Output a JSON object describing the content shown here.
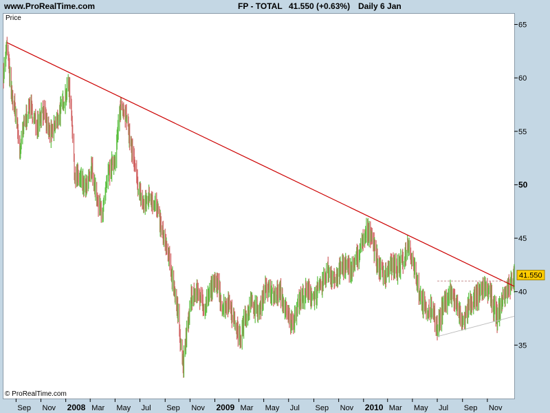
{
  "header": {
    "site": "www.ProRealTime.com",
    "title": "FP - TOTAL",
    "price_text": "41.550 (+0.63%)",
    "period": "Daily  6 Jan"
  },
  "panel": {
    "price_label": "Price",
    "copyright": "© ProRealTime.com"
  },
  "colors": {
    "background": "#c4d7e4",
    "up": "#5bbf40",
    "down": "#d06060",
    "trendline": "#cc0000",
    "support": "#bbbbbb",
    "resistance": "#c89090",
    "last_price_box": "#ffcc00"
  },
  "chart_data": {
    "type": "bar",
    "instrument": "FP - TOTAL",
    "interval": "Daily",
    "last_price": 41.55,
    "last_price_label": "41.550",
    "change_pct": 0.63,
    "x_start": "2007-08-01",
    "x_end": "2011-01-06",
    "ylim": [
      30,
      66
    ],
    "y_ticks": [
      {
        "value": 35,
        "label": "35"
      },
      {
        "value": 40,
        "label": "40"
      },
      {
        "value": 45,
        "label": "45"
      },
      {
        "value": 50,
        "label": "50"
      },
      {
        "value": 55,
        "label": "55"
      },
      {
        "value": 60,
        "label": "60"
      },
      {
        "value": 65,
        "label": "65"
      }
    ],
    "x_ticks": [
      {
        "date": "2007-09-01",
        "label": "Sep",
        "bold": false
      },
      {
        "date": "2007-11-01",
        "label": "Nov",
        "bold": false
      },
      {
        "date": "2008-01-01",
        "label": "2008",
        "bold": true
      },
      {
        "date": "2008-03-01",
        "label": "Mar",
        "bold": false
      },
      {
        "date": "2008-05-01",
        "label": "May",
        "bold": false
      },
      {
        "date": "2008-07-01",
        "label": "Jul",
        "bold": false
      },
      {
        "date": "2008-09-01",
        "label": "Sep",
        "bold": false
      },
      {
        "date": "2008-11-01",
        "label": "Nov",
        "bold": false
      },
      {
        "date": "2009-01-01",
        "label": "2009",
        "bold": true
      },
      {
        "date": "2009-03-01",
        "label": "Mar",
        "bold": false
      },
      {
        "date": "2009-05-01",
        "label": "May",
        "bold": false
      },
      {
        "date": "2009-07-01",
        "label": "Jul",
        "bold": false
      },
      {
        "date": "2009-09-01",
        "label": "Sep",
        "bold": false
      },
      {
        "date": "2009-11-01",
        "label": "Nov",
        "bold": false
      },
      {
        "date": "2010-01-01",
        "label": "2010",
        "bold": true
      },
      {
        "date": "2010-03-01",
        "label": "Mar",
        "bold": false
      },
      {
        "date": "2010-05-01",
        "label": "May",
        "bold": false
      },
      {
        "date": "2010-07-01",
        "label": "Jul",
        "bold": false
      },
      {
        "date": "2010-09-01",
        "label": "Sep",
        "bold": false
      },
      {
        "date": "2010-11-01",
        "label": "Nov",
        "bold": false
      }
    ],
    "price_path": [
      [
        "2007-08-01",
        60.5
      ],
      [
        "2007-08-10",
        63.0
      ],
      [
        "2007-08-20",
        58.5
      ],
      [
        "2007-09-01",
        56.5
      ],
      [
        "2007-09-10",
        53.0
      ],
      [
        "2007-09-20",
        55.5
      ],
      [
        "2007-10-05",
        57.5
      ],
      [
        "2007-10-20",
        55.5
      ],
      [
        "2007-11-05",
        57.0
      ],
      [
        "2007-11-25",
        54.5
      ],
      [
        "2007-12-15",
        56.5
      ],
      [
        "2008-01-01",
        58.5
      ],
      [
        "2008-01-08",
        59.5
      ],
      [
        "2008-01-15",
        57.0
      ],
      [
        "2008-01-22",
        51.0
      ],
      [
        "2008-02-05",
        50.5
      ],
      [
        "2008-02-20",
        49.5
      ],
      [
        "2008-03-05",
        51.5
      ],
      [
        "2008-03-20",
        48.0
      ],
      [
        "2008-04-01",
        47.5
      ],
      [
        "2008-04-15",
        51.0
      ],
      [
        "2008-05-01",
        52.5
      ],
      [
        "2008-05-15",
        57.5
      ],
      [
        "2008-05-25",
        57.0
      ],
      [
        "2008-06-10",
        53.5
      ],
      [
        "2008-06-25",
        50.0
      ],
      [
        "2008-07-10",
        48.0
      ],
      [
        "2008-07-25",
        49.0
      ],
      [
        "2008-08-10",
        48.0
      ],
      [
        "2008-08-25",
        45.5
      ],
      [
        "2008-09-10",
        43.0
      ],
      [
        "2008-09-25",
        40.0
      ],
      [
        "2008-10-05",
        37.0
      ],
      [
        "2008-10-15",
        33.0
      ],
      [
        "2008-10-25",
        36.5
      ],
      [
        "2008-11-05",
        39.5
      ],
      [
        "2008-11-20",
        40.0
      ],
      [
        "2008-12-05",
        38.5
      ],
      [
        "2008-12-20",
        40.0
      ],
      [
        "2009-01-05",
        41.0
      ],
      [
        "2009-01-20",
        38.5
      ],
      [
        "2009-02-05",
        39.0
      ],
      [
        "2009-02-20",
        37.0
      ],
      [
        "2009-03-05",
        35.5
      ],
      [
        "2009-03-15",
        37.5
      ],
      [
        "2009-04-01",
        39.0
      ],
      [
        "2009-04-20",
        38.0
      ],
      [
        "2009-05-05",
        40.5
      ],
      [
        "2009-05-25",
        39.5
      ],
      [
        "2009-06-10",
        40.0
      ],
      [
        "2009-06-25",
        38.0
      ],
      [
        "2009-07-10",
        37.0
      ],
      [
        "2009-07-25",
        39.0
      ],
      [
        "2009-08-15",
        40.0
      ],
      [
        "2009-09-01",
        39.5
      ],
      [
        "2009-09-20",
        40.5
      ],
      [
        "2009-10-05",
        42.0
      ],
      [
        "2009-10-25",
        41.0
      ],
      [
        "2009-11-10",
        42.5
      ],
      [
        "2009-12-01",
        42.0
      ],
      [
        "2009-12-20",
        43.5
      ],
      [
        "2010-01-08",
        45.5
      ],
      [
        "2010-01-20",
        45.5
      ],
      [
        "2010-02-05",
        42.5
      ],
      [
        "2010-02-20",
        41.5
      ],
      [
        "2010-03-10",
        42.5
      ],
      [
        "2010-03-25",
        42.0
      ],
      [
        "2010-04-10",
        43.0
      ],
      [
        "2010-04-20",
        44.5
      ],
      [
        "2010-05-05",
        42.5
      ],
      [
        "2010-05-20",
        39.5
      ],
      [
        "2010-06-05",
        38.0
      ],
      [
        "2010-06-20",
        38.5
      ],
      [
        "2010-07-01",
        36.5
      ],
      [
        "2010-07-15",
        38.5
      ],
      [
        "2010-08-01",
        40.0
      ],
      [
        "2010-08-15",
        39.0
      ],
      [
        "2010-09-01",
        37.0
      ],
      [
        "2010-09-20",
        39.0
      ],
      [
        "2010-10-10",
        39.5
      ],
      [
        "2010-10-25",
        40.5
      ],
      [
        "2010-11-10",
        39.5
      ],
      [
        "2010-11-25",
        37.5
      ],
      [
        "2010-12-10",
        39.5
      ],
      [
        "2010-12-25",
        40.5
      ],
      [
        "2011-01-06",
        41.5
      ]
    ],
    "trendline": [
      [
        "2007-08-10",
        63.3
      ],
      [
        "2011-01-06",
        40.5
      ]
    ],
    "support_line": [
      [
        "2010-07-01",
        35.8
      ],
      [
        "2011-01-06",
        37.7
      ]
    ],
    "resistance_line": [
      [
        "2010-07-01",
        41.0
      ],
      [
        "2010-12-20",
        41.0
      ]
    ]
  }
}
